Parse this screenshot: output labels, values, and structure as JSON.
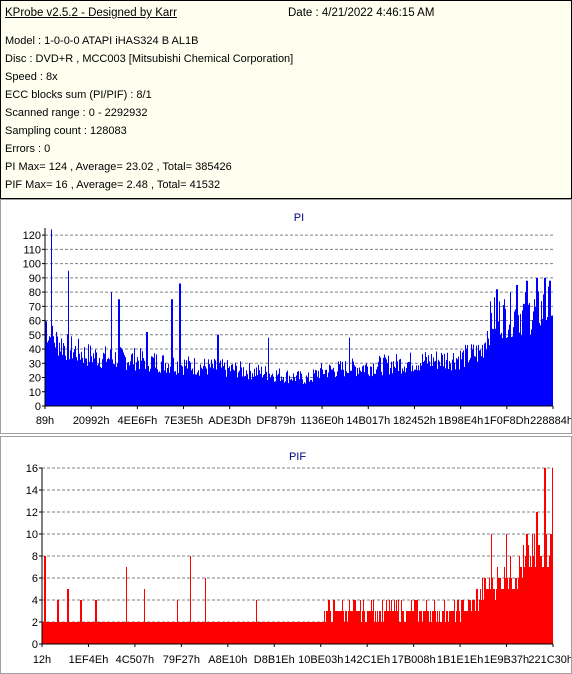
{
  "header": {
    "title": "KProbe v2.5.2 - Designed by Karr",
    "date": "Date : 4/21/2022 4:46:15 AM"
  },
  "info_lines": [
    "Model : 1-0-0-0 ATAPI   iHAS324   B      AL1B",
    "Disc : DVD+R , MCC003 [Mitsubishi Chemical Corporation]",
    "Speed : 8x",
    "ECC blocks sum (PI/PIF) : 8/1",
    "Scanned range : 0 - 2292932",
    "Sampling count : 128083",
    "Errors : 0",
    "PI Max= 124 , Average= 23.02 , Total= 385426",
    "PIF Max= 16 , Average= 2.48 , Total= 41532"
  ],
  "colors": {
    "pi": "#0000ff",
    "pif": "#ff0000",
    "grid": "#808080",
    "title": "#000080"
  },
  "chart_data": [
    {
      "type": "area",
      "title": "PI",
      "ylim": [
        0,
        125
      ],
      "yticks": [
        0,
        10,
        20,
        30,
        40,
        50,
        60,
        70,
        80,
        90,
        100,
        110,
        120
      ],
      "xtick_labels": [
        "89h",
        "20992h",
        "4EE6Fh",
        "7E3E5h",
        "ADE3Dh",
        "DF879h",
        "1136E0h",
        "14B017h",
        "182452h",
        "1B98E4h",
        "1F0F8Dh",
        "228884h"
      ],
      "grid": true,
      "profile": [
        [
          0.0,
          60
        ],
        [
          0.01,
          48
        ],
        [
          0.03,
          44
        ],
        [
          0.05,
          40
        ],
        [
          0.08,
          36
        ],
        [
          0.12,
          34
        ],
        [
          0.18,
          33
        ],
        [
          0.24,
          30
        ],
        [
          0.3,
          28
        ],
        [
          0.36,
          26
        ],
        [
          0.42,
          24
        ],
        [
          0.48,
          21
        ],
        [
          0.52,
          19
        ],
        [
          0.54,
          24
        ],
        [
          0.58,
          26
        ],
        [
          0.64,
          28
        ],
        [
          0.7,
          30
        ],
        [
          0.76,
          32
        ],
        [
          0.82,
          34
        ],
        [
          0.86,
          38
        ],
        [
          0.87,
          50
        ],
        [
          0.88,
          62
        ],
        [
          0.92,
          64
        ],
        [
          0.96,
          66
        ],
        [
          1.0,
          70
        ]
      ],
      "spikes": [
        [
          0.012,
          124
        ],
        [
          0.045,
          95
        ],
        [
          0.13,
          80
        ],
        [
          0.145,
          75
        ],
        [
          0.25,
          75
        ],
        [
          0.265,
          86
        ],
        [
          0.2,
          52
        ],
        [
          0.34,
          50
        ],
        [
          0.44,
          48
        ],
        [
          0.6,
          48
        ],
        [
          0.89,
          82
        ],
        [
          0.93,
          85
        ],
        [
          0.95,
          88
        ],
        [
          0.97,
          90
        ],
        [
          0.985,
          90
        ],
        [
          0.995,
          88
        ]
      ]
    },
    {
      "type": "area",
      "title": "PIF",
      "ylim": [
        0,
        16
      ],
      "yticks": [
        0,
        2,
        4,
        6,
        8,
        10,
        12,
        14,
        16
      ],
      "xtick_labels": [
        "12h",
        "1EF4Eh",
        "4C507h",
        "79F27h",
        "A8E10h",
        "D8B1Eh",
        "10BE03h",
        "142C1Eh",
        "17B008h",
        "1B1E1Eh",
        "1E9B37h",
        "221C30h"
      ],
      "grid": true,
      "profile": [
        [
          0.0,
          2
        ],
        [
          0.1,
          2
        ],
        [
          0.2,
          2
        ],
        [
          0.3,
          2
        ],
        [
          0.4,
          2
        ],
        [
          0.5,
          2
        ],
        [
          0.55,
          2
        ],
        [
          0.56,
          3
        ],
        [
          0.7,
          3
        ],
        [
          0.82,
          3
        ],
        [
          0.85,
          4
        ],
        [
          0.87,
          5
        ],
        [
          0.9,
          6
        ],
        [
          0.94,
          7
        ],
        [
          0.97,
          8
        ],
        [
          1.0,
          9
        ]
      ],
      "spikes": [
        [
          0.005,
          8
        ],
        [
          0.03,
          4
        ],
        [
          0.05,
          5
        ],
        [
          0.075,
          4
        ],
        [
          0.105,
          4
        ],
        [
          0.165,
          7
        ],
        [
          0.2,
          5
        ],
        [
          0.265,
          4
        ],
        [
          0.29,
          8
        ],
        [
          0.32,
          6
        ],
        [
          0.42,
          4
        ],
        [
          0.73,
          4
        ],
        [
          0.88,
          10
        ],
        [
          0.91,
          10
        ],
        [
          0.95,
          10
        ],
        [
          0.97,
          12
        ],
        [
          0.985,
          16
        ],
        [
          1.0,
          16
        ]
      ]
    }
  ]
}
